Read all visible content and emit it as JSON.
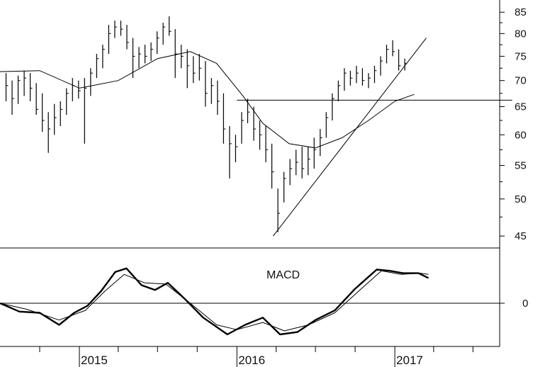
{
  "chart_data": [
    {
      "type": "ohlc",
      "x_axis": {
        "tick_labels": [
          "2015",
          "2016",
          "2017"
        ]
      },
      "y_axis": {
        "scale": "log",
        "tick_labels": [
          "45",
          "50",
          "55",
          "60",
          "65",
          "70",
          "75",
          "80",
          "85"
        ],
        "ticks": [
          45,
          50,
          55,
          60,
          65,
          70,
          75,
          80,
          85
        ],
        "range": [
          43.5,
          88
        ]
      },
      "time_range": [
        "2014-07",
        "2017-09"
      ],
      "bars": [
        {
          "t": "2014-07-15",
          "h": 71.5,
          "l": 66.0,
          "c": 69.0
        },
        {
          "t": "2014-07-29",
          "h": 70.0,
          "l": 63.5,
          "c": 66.5
        },
        {
          "t": "2014-08-12",
          "h": 71.0,
          "l": 65.5,
          "c": 70.0
        },
        {
          "t": "2014-08-26",
          "h": 72.0,
          "l": 67.0,
          "c": 70.5
        },
        {
          "t": "2014-09-09",
          "h": 71.5,
          "l": 66.0,
          "c": 68.5
        },
        {
          "t": "2014-09-23",
          "h": 69.5,
          "l": 63.5,
          "c": 64.5
        },
        {
          "t": "2014-10-07",
          "h": 67.5,
          "l": 60.5,
          "c": 62.5
        },
        {
          "t": "2014-10-21",
          "h": 64.0,
          "l": 57.0,
          "c": 61.0
        },
        {
          "t": "2014-11-04",
          "h": 65.5,
          "l": 60.0,
          "c": 63.0
        },
        {
          "t": "2014-11-18",
          "h": 66.0,
          "l": 61.5,
          "c": 64.5
        },
        {
          "t": "2014-12-02",
          "h": 68.5,
          "l": 63.5,
          "c": 67.5
        },
        {
          "t": "2014-12-16",
          "h": 70.5,
          "l": 66.0,
          "c": 69.0
        },
        {
          "t": "2014-12-30",
          "h": 70.0,
          "l": 66.5,
          "c": 68.0
        },
        {
          "t": "2015-01-13",
          "h": 70.5,
          "l": 58.5,
          "c": 68.5
        },
        {
          "t": "2015-01-27",
          "h": 72.5,
          "l": 67.0,
          "c": 71.5
        },
        {
          "t": "2015-02-10",
          "h": 75.5,
          "l": 70.5,
          "c": 74.5
        },
        {
          "t": "2015-02-24",
          "h": 77.5,
          "l": 72.5,
          "c": 76.5
        },
        {
          "t": "2015-03-10",
          "h": 82.0,
          "l": 75.5,
          "c": 80.0
        },
        {
          "t": "2015-03-24",
          "h": 83.0,
          "l": 79.0,
          "c": 81.5
        },
        {
          "t": "2015-04-07",
          "h": 83.0,
          "l": 79.5,
          "c": 81.0
        },
        {
          "t": "2015-04-21",
          "h": 82.0,
          "l": 76.5,
          "c": 78.0
        },
        {
          "t": "2015-05-05",
          "h": 79.0,
          "l": 70.5,
          "c": 75.0
        },
        {
          "t": "2015-05-19",
          "h": 77.0,
          "l": 72.5,
          "c": 75.5
        },
        {
          "t": "2015-06-02",
          "h": 77.5,
          "l": 73.5,
          "c": 75.0
        },
        {
          "t": "2015-06-16",
          "h": 78.0,
          "l": 74.0,
          "c": 76.5
        },
        {
          "t": "2015-06-30",
          "h": 80.5,
          "l": 75.5,
          "c": 79.0
        },
        {
          "t": "2015-07-14",
          "h": 82.5,
          "l": 77.5,
          "c": 81.5
        },
        {
          "t": "2015-07-28",
          "h": 84.0,
          "l": 79.5,
          "c": 80.5
        },
        {
          "t": "2015-08-11",
          "h": 81.0,
          "l": 70.5,
          "c": 75.5
        },
        {
          "t": "2015-08-25",
          "h": 77.5,
          "l": 72.5,
          "c": 75.0
        },
        {
          "t": "2015-09-08",
          "h": 76.5,
          "l": 68.5,
          "c": 73.0
        },
        {
          "t": "2015-09-22",
          "h": 75.0,
          "l": 69.5,
          "c": 71.5
        },
        {
          "t": "2015-10-06",
          "h": 75.5,
          "l": 70.0,
          "c": 72.5
        },
        {
          "t": "2015-10-20",
          "h": 74.0,
          "l": 65.0,
          "c": 67.5
        },
        {
          "t": "2015-11-03",
          "h": 70.5,
          "l": 65.5,
          "c": 69.0
        },
        {
          "t": "2015-11-17",
          "h": 70.0,
          "l": 63.5,
          "c": 66.0
        },
        {
          "t": "2015-12-01",
          "h": 67.5,
          "l": 58.5,
          "c": 61.0
        },
        {
          "t": "2015-12-15",
          "h": 61.5,
          "l": 53.0,
          "c": 58.5
        },
        {
          "t": "2015-12-29",
          "h": 60.0,
          "l": 55.5,
          "c": 58.0
        },
        {
          "t": "2016-01-12",
          "h": 64.0,
          "l": 58.5,
          "c": 62.5
        },
        {
          "t": "2016-01-26",
          "h": 66.5,
          "l": 62.0,
          "c": 64.0
        },
        {
          "t": "2016-02-09",
          "h": 65.0,
          "l": 59.0,
          "c": 61.0
        },
        {
          "t": "2016-02-23",
          "h": 62.5,
          "l": 57.5,
          "c": 60.0
        },
        {
          "t": "2016-03-08",
          "h": 61.5,
          "l": 55.5,
          "c": 57.5
        },
        {
          "t": "2016-03-22",
          "h": 58.5,
          "l": 51.5,
          "c": 54.0
        },
        {
          "t": "2016-04-05",
          "h": 51.5,
          "l": 45.5,
          "c": 48.0
        },
        {
          "t": "2016-04-19",
          "h": 54.0,
          "l": 49.5,
          "c": 53.0
        },
        {
          "t": "2016-05-03",
          "h": 56.0,
          "l": 52.0,
          "c": 54.5
        },
        {
          "t": "2016-05-17",
          "h": 57.5,
          "l": 53.5,
          "c": 55.5
        },
        {
          "t": "2016-05-31",
          "h": 58.0,
          "l": 53.0,
          "c": 54.5
        },
        {
          "t": "2016-06-14",
          "h": 58.0,
          "l": 53.5,
          "c": 56.0
        },
        {
          "t": "2016-06-28",
          "h": 59.5,
          "l": 54.5,
          "c": 57.5
        },
        {
          "t": "2016-07-12",
          "h": 61.0,
          "l": 56.5,
          "c": 59.5
        },
        {
          "t": "2016-07-26",
          "h": 64.0,
          "l": 59.5,
          "c": 63.0
        },
        {
          "t": "2016-08-09",
          "h": 67.5,
          "l": 62.5,
          "c": 66.5
        },
        {
          "t": "2016-08-23",
          "h": 70.0,
          "l": 66.0,
          "c": 69.0
        },
        {
          "t": "2016-09-06",
          "h": 72.5,
          "l": 68.0,
          "c": 71.5
        },
        {
          "t": "2016-09-20",
          "h": 72.0,
          "l": 69.0,
          "c": 70.5
        },
        {
          "t": "2016-10-04",
          "h": 73.0,
          "l": 69.5,
          "c": 71.5
        },
        {
          "t": "2016-10-18",
          "h": 72.5,
          "l": 69.0,
          "c": 70.0
        },
        {
          "t": "2016-11-01",
          "h": 71.5,
          "l": 68.5,
          "c": 70.5
        },
        {
          "t": "2016-11-15",
          "h": 73.0,
          "l": 69.5,
          "c": 72.0
        },
        {
          "t": "2016-11-29",
          "h": 75.0,
          "l": 71.0,
          "c": 74.0
        },
        {
          "t": "2016-12-13",
          "h": 77.5,
          "l": 73.5,
          "c": 76.5
        },
        {
          "t": "2016-12-27",
          "h": 78.5,
          "l": 75.0,
          "c": 76.0
        },
        {
          "t": "2017-01-10",
          "h": 76.5,
          "l": 72.0,
          "c": 73.0
        },
        {
          "t": "2017-01-24",
          "h": 74.5,
          "l": 72.0,
          "c": 73.5
        }
      ],
      "moving_average": [
        {
          "t": "2014-07-01",
          "v": 71.8
        },
        {
          "t": "2014-10-01",
          "v": 72.0
        },
        {
          "t": "2015-01-01",
          "v": 68.5
        },
        {
          "t": "2015-04-01",
          "v": 70.0
        },
        {
          "t": "2015-07-01",
          "v": 74.5
        },
        {
          "t": "2015-09-15",
          "v": 76.0
        },
        {
          "t": "2015-11-15",
          "v": 73.5
        },
        {
          "t": "2016-01-15",
          "v": 67.0
        },
        {
          "t": "2016-03-01",
          "v": 62.0
        },
        {
          "t": "2016-05-01",
          "v": 58.5
        },
        {
          "t": "2016-07-01",
          "v": 57.8
        },
        {
          "t": "2016-09-01",
          "v": 59.5
        },
        {
          "t": "2016-11-01",
          "v": 62.5
        },
        {
          "t": "2017-01-01",
          "v": 66.0
        },
        {
          "t": "2017-02-15",
          "v": 67.3
        }
      ],
      "annotations": [
        {
          "kind": "horizontal_line",
          "value": 66.2,
          "from": "2016-01-01",
          "to": "2017-09-30"
        },
        {
          "kind": "trend_line",
          "from": {
            "t": "2016-03-25",
            "v": 45.0
          },
          "to": {
            "t": "2017-03-15",
            "v": 79.0
          }
        }
      ]
    },
    {
      "type": "line",
      "title": "MACD",
      "y_axis": {
        "tick_labels": [
          "0"
        ],
        "ticks": [
          0
        ],
        "range": [
          -1.8,
          2.3
        ]
      },
      "upper_line": 1.6,
      "series": [
        {
          "style": "thick",
          "points": [
            {
              "t": "2014-07-01",
              "v": 0.0
            },
            {
              "t": "2014-08-15",
              "v": -0.35
            },
            {
              "t": "2014-10-01",
              "v": -0.4
            },
            {
              "t": "2014-11-15",
              "v": -0.9
            },
            {
              "t": "2014-12-20",
              "v": -0.4
            },
            {
              "t": "2015-01-20",
              "v": -0.1
            },
            {
              "t": "2015-02-20",
              "v": 0.5
            },
            {
              "t": "2015-03-25",
              "v": 1.3
            },
            {
              "t": "2015-04-20",
              "v": 1.45
            },
            {
              "t": "2015-05-25",
              "v": 0.75
            },
            {
              "t": "2015-06-25",
              "v": 0.55
            },
            {
              "t": "2015-07-25",
              "v": 0.85
            },
            {
              "t": "2015-09-01",
              "v": 0.2
            },
            {
              "t": "2015-10-15",
              "v": -0.6
            },
            {
              "t": "2015-12-10",
              "v": -1.3
            },
            {
              "t": "2016-01-20",
              "v": -0.9
            },
            {
              "t": "2016-03-01",
              "v": -0.6
            },
            {
              "t": "2016-04-10",
              "v": -1.3
            },
            {
              "t": "2016-05-20",
              "v": -1.2
            },
            {
              "t": "2016-07-01",
              "v": -0.7
            },
            {
              "t": "2016-08-15",
              "v": -0.3
            },
            {
              "t": "2016-10-01",
              "v": 0.6
            },
            {
              "t": "2016-11-20",
              "v": 1.4
            },
            {
              "t": "2016-12-20",
              "v": 1.35
            },
            {
              "t": "2017-01-20",
              "v": 1.25
            },
            {
              "t": "2017-02-25",
              "v": 1.25
            },
            {
              "t": "2017-03-20",
              "v": 1.05
            }
          ]
        },
        {
          "style": "thin",
          "points": [
            {
              "t": "2014-07-01",
              "v": 0.0
            },
            {
              "t": "2014-09-01",
              "v": -0.25
            },
            {
              "t": "2014-11-15",
              "v": -0.7
            },
            {
              "t": "2015-01-15",
              "v": -0.3
            },
            {
              "t": "2015-03-01",
              "v": 0.5
            },
            {
              "t": "2015-04-15",
              "v": 1.2
            },
            {
              "t": "2015-06-01",
              "v": 0.85
            },
            {
              "t": "2015-07-20",
              "v": 0.8
            },
            {
              "t": "2015-09-15",
              "v": 0.0
            },
            {
              "t": "2015-11-15",
              "v": -0.9
            },
            {
              "t": "2016-01-01",
              "v": -1.1
            },
            {
              "t": "2016-03-01",
              "v": -0.8
            },
            {
              "t": "2016-04-20",
              "v": -1.15
            },
            {
              "t": "2016-06-15",
              "v": -0.9
            },
            {
              "t": "2016-08-15",
              "v": -0.4
            },
            {
              "t": "2016-10-15",
              "v": 0.6
            },
            {
              "t": "2016-12-01",
              "v": 1.35
            },
            {
              "t": "2017-01-15",
              "v": 1.2
            },
            {
              "t": "2017-03-01",
              "v": 1.25
            },
            {
              "t": "2017-03-20",
              "v": 1.2
            }
          ]
        }
      ]
    }
  ]
}
